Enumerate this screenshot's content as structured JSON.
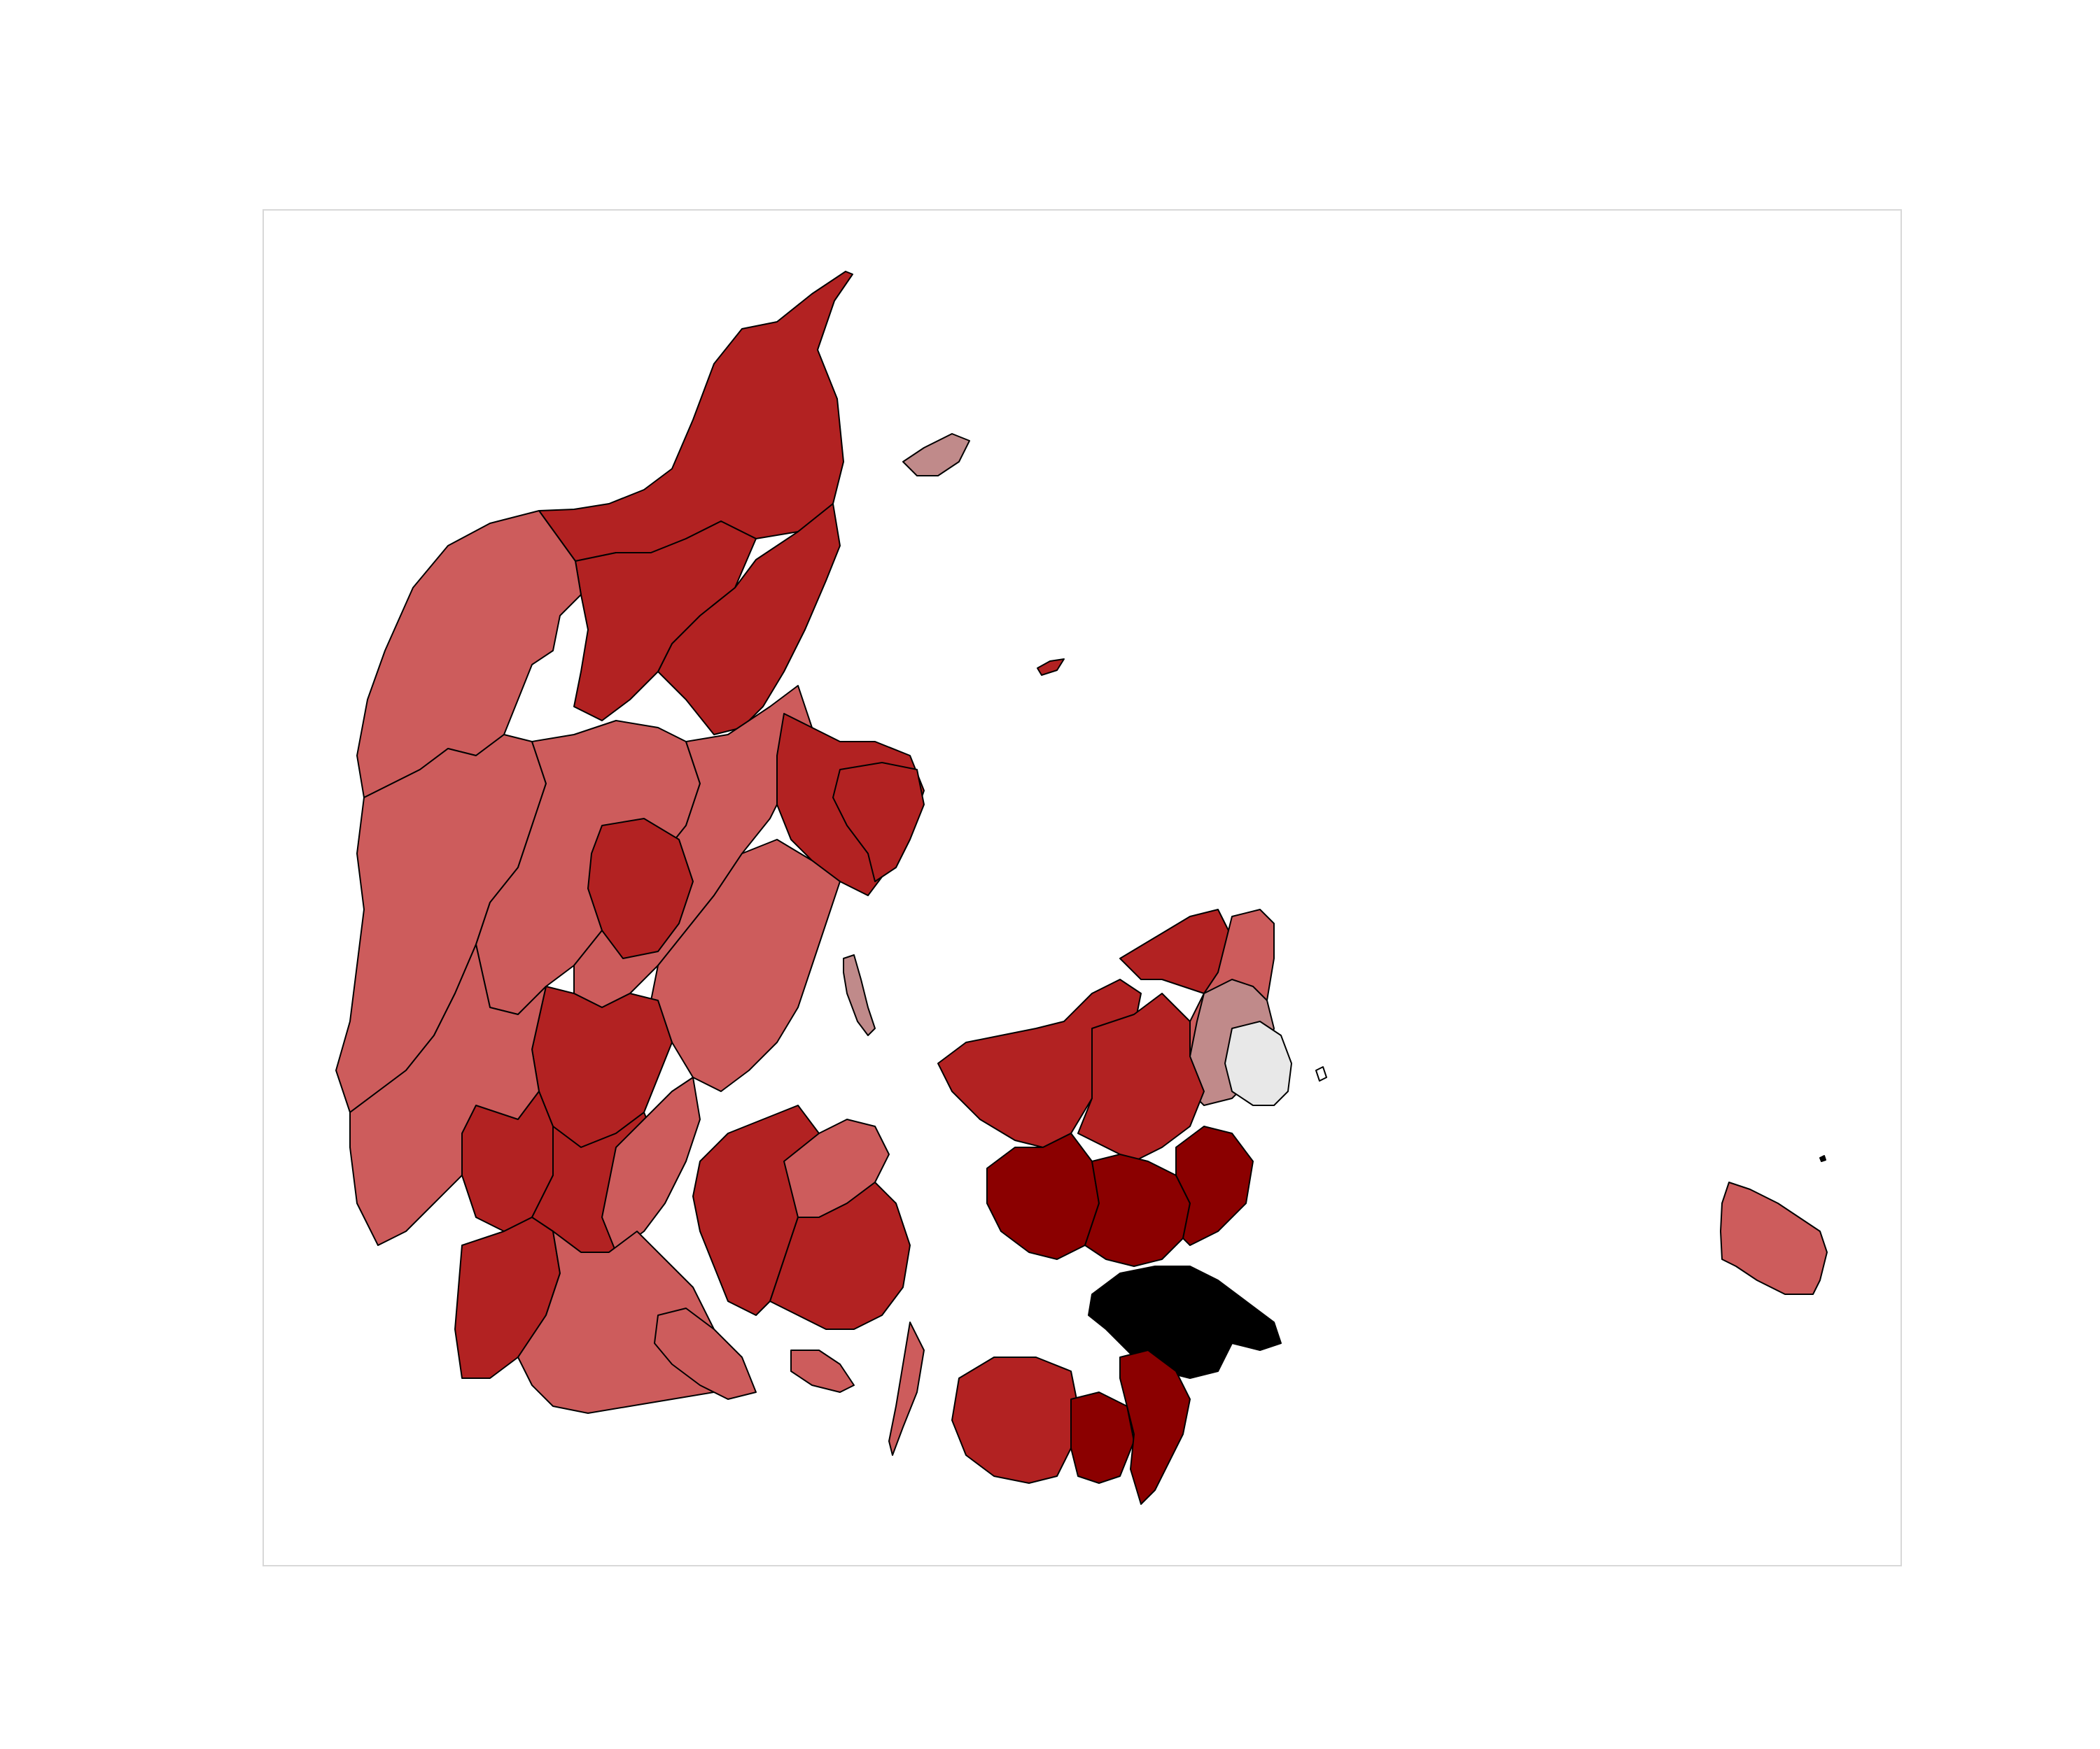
{
  "map": {
    "title": "",
    "legend": null,
    "palette": {
      "light_gray": "#e8e8e8",
      "gray_pink": "#c08a8a",
      "light_red": "#cd5c5c",
      "red": "#b22222",
      "dark_red": "#8b0000",
      "black": "#000000"
    },
    "regions": [
      {
        "name": "north-jutland-tip",
        "class": "red"
      },
      {
        "name": "north-jutland-east",
        "class": "red"
      },
      {
        "name": "north-jutland-central",
        "class": "red"
      },
      {
        "name": "thy-mors-west",
        "class": "light_red"
      },
      {
        "name": "west-jutland",
        "class": "light_red"
      },
      {
        "name": "central-jutland-west",
        "class": "light_red"
      },
      {
        "name": "central-jutland",
        "class": "light_red"
      },
      {
        "name": "central-jutland-inner",
        "class": "red"
      },
      {
        "name": "east-jutland-north",
        "class": "red"
      },
      {
        "name": "djursland",
        "class": "red"
      },
      {
        "name": "east-jutland",
        "class": "light_red"
      },
      {
        "name": "south-central-jutland",
        "class": "red"
      },
      {
        "name": "south-west-jutland",
        "class": "light_red"
      },
      {
        "name": "south-jutland-west",
        "class": "red"
      },
      {
        "name": "south-jutland-mid",
        "class": "red"
      },
      {
        "name": "south-jutland-east",
        "class": "light_red"
      },
      {
        "name": "south-jutland-south",
        "class": "red"
      },
      {
        "name": "als",
        "class": "light_red"
      },
      {
        "name": "funen-west",
        "class": "red"
      },
      {
        "name": "funen-east",
        "class": "red"
      },
      {
        "name": "funen-north",
        "class": "light_red"
      },
      {
        "name": "langeland",
        "class": "light_red"
      },
      {
        "name": "laeso",
        "class": "gray_pink"
      },
      {
        "name": "anholt",
        "class": "red"
      },
      {
        "name": "samso",
        "class": "gray_pink"
      },
      {
        "name": "zealand-north",
        "class": "red"
      },
      {
        "name": "zealand-north-east",
        "class": "light_red"
      },
      {
        "name": "copenhagen-suburbs",
        "class": "gray_pink"
      },
      {
        "name": "copenhagen",
        "class": "light_gray"
      },
      {
        "name": "zealand-west",
        "class": "red"
      },
      {
        "name": "zealand-central",
        "class": "red"
      },
      {
        "name": "zealand-south-west",
        "class": "dark_red"
      },
      {
        "name": "zealand-south",
        "class": "dark_red"
      },
      {
        "name": "zealand-south-east",
        "class": "dark_red"
      },
      {
        "name": "mon-area",
        "class": "black"
      },
      {
        "name": "lolland",
        "class": "red"
      },
      {
        "name": "falster-west",
        "class": "dark_red"
      },
      {
        "name": "falster-east",
        "class": "dark_red"
      },
      {
        "name": "bornholm",
        "class": "light_red"
      }
    ]
  }
}
